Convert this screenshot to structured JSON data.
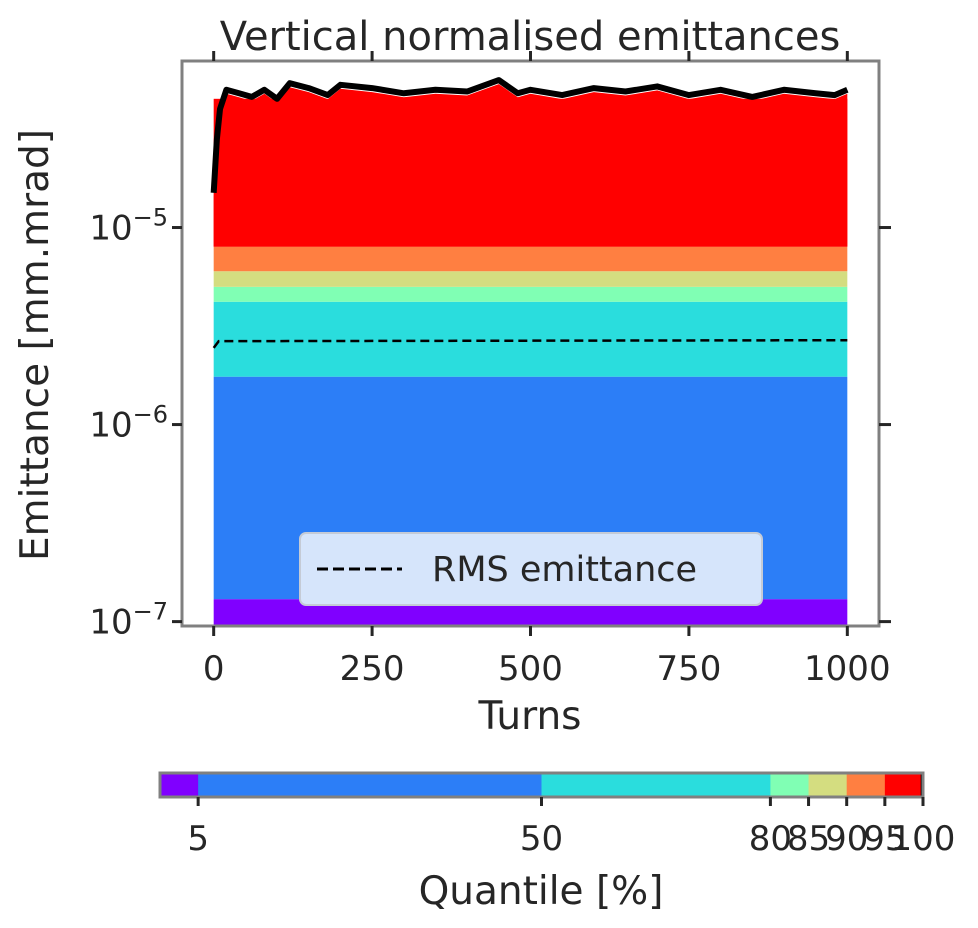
{
  "chart_data": {
    "type": "area",
    "title": "Vertical normalised emittances",
    "xlabel": "Turns",
    "ylabel": "Emittance [mm.mrad]",
    "xlim": [
      -50,
      1050
    ],
    "ylim": [
      9.5e-08,
      7e-05
    ],
    "yscale": "log",
    "x_ticks": [
      0,
      250,
      500,
      750,
      1000
    ],
    "x_tick_labels": [
      "0",
      "250",
      "500",
      "750",
      "1000"
    ],
    "y_ticks": [
      1e-07,
      1e-06,
      1e-05
    ],
    "y_tick_labels": [
      {
        "base": "10",
        "exp": "−7"
      },
      {
        "base": "10",
        "exp": "−6"
      },
      {
        "base": "10",
        "exp": "−5"
      }
    ],
    "x_range": [
      0,
      1000
    ],
    "quantile_bands": [
      {
        "quantile": 5,
        "lower": 9.5e-08,
        "upper": 1.3e-07,
        "color": "#8000ff"
      },
      {
        "quantile": 50,
        "lower": 1.3e-07,
        "upper": 1.75e-06,
        "color": "#2c7ef7"
      },
      {
        "quantile": 80,
        "lower": 1.75e-06,
        "upper": 4.2e-06,
        "color": "#2adddd"
      },
      {
        "quantile": 85,
        "lower": 4.2e-06,
        "upper": 5e-06,
        "color": "#80ffb4"
      },
      {
        "quantile": 90,
        "lower": 5e-06,
        "upper": 6e-06,
        "color": "#d4dd80"
      },
      {
        "quantile": 95,
        "lower": 6e-06,
        "upper": 8e-06,
        "color": "#ff7f41"
      },
      {
        "quantile": 100,
        "lower": 8e-06,
        "upper": 4.5e-05,
        "color": "#ff0000"
      }
    ],
    "max_line": {
      "color": "#000000",
      "points": [
        [
          0,
          1.5e-05
        ],
        [
          5,
          2.8e-05
        ],
        [
          10,
          4e-05
        ],
        [
          20,
          5e-05
        ],
        [
          40,
          4.8e-05
        ],
        [
          60,
          4.6e-05
        ],
        [
          80,
          5e-05
        ],
        [
          100,
          4.5e-05
        ],
        [
          120,
          5.4e-05
        ],
        [
          150,
          5.1e-05
        ],
        [
          180,
          4.7e-05
        ],
        [
          200,
          5.3e-05
        ],
        [
          250,
          5.1e-05
        ],
        [
          300,
          4.8e-05
        ],
        [
          350,
          5e-05
        ],
        [
          400,
          4.9e-05
        ],
        [
          450,
          5.6e-05
        ],
        [
          480,
          4.8e-05
        ],
        [
          500,
          5e-05
        ],
        [
          550,
          4.7e-05
        ],
        [
          600,
          5.1e-05
        ],
        [
          650,
          4.9e-05
        ],
        [
          700,
          5.2e-05
        ],
        [
          750,
          4.7e-05
        ],
        [
          800,
          5e-05
        ],
        [
          850,
          4.6e-05
        ],
        [
          900,
          5e-05
        ],
        [
          950,
          4.8e-05
        ],
        [
          980,
          4.7e-05
        ],
        [
          1000,
          5e-05
        ]
      ]
    },
    "rms_line": {
      "name": "RMS emittance",
      "style": "dashed",
      "color": "#000000",
      "points": [
        [
          0,
          2.45e-06
        ],
        [
          8,
          2.65e-06
        ],
        [
          1000,
          2.68e-06
        ]
      ]
    },
    "legend": {
      "placement": "bottom-center",
      "label": "RMS emittance"
    },
    "colorbar": {
      "label": "Quantile [%]",
      "tick_labels": [
        "5",
        "50",
        "80",
        "85",
        "90",
        "95",
        "100"
      ],
      "segments": [
        {
          "from": 0,
          "to": 5,
          "color": "#8000ff"
        },
        {
          "from": 5,
          "to": 50,
          "color": "#2c7ef7"
        },
        {
          "from": 50,
          "to": 80,
          "color": "#2adddd"
        },
        {
          "from": 80,
          "to": 85,
          "color": "#80ffb4"
        },
        {
          "from": 85,
          "to": 90,
          "color": "#d4dd80"
        },
        {
          "from": 90,
          "to": 95,
          "color": "#ff7f41"
        },
        {
          "from": 95,
          "to": 99.7,
          "color": "#ff0000"
        },
        {
          "from": 99.7,
          "to": 100,
          "color": "#000000"
        }
      ]
    },
    "grid": false,
    "frame_color": "#808080"
  }
}
